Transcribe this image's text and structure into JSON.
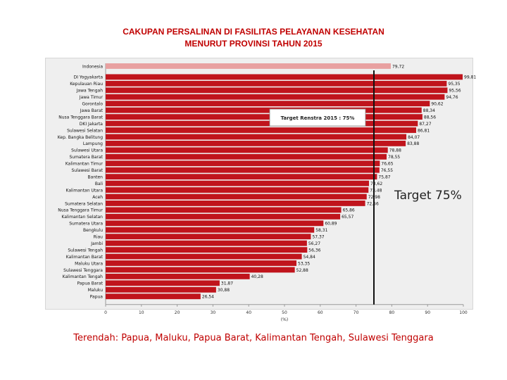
{
  "title_line1": "CAKUPAN PERSALINAN DI FASILITAS PELAYANAN KESEHATAN",
  "title_line2": "MENURUT PROVINSI TAHUN 2015",
  "target_label": "Target 75%",
  "footer_note": "Terendah: Papua, Maluku, Papua Barat, Kalimantan Tengah, Sulawesi Tenggara",
  "colors": {
    "bar": "#c0141c",
    "national_bar": "#e8a0a0",
    "target_line": "#111111",
    "title": "#c00000"
  },
  "chart_data": {
    "type": "bar",
    "orientation": "horizontal",
    "title": "CAKUPAN PERSALINAN DI FASILITAS PELAYANAN KESEHATAN MENURUT PROVINSI TAHUN 2015",
    "xlabel": "(%)",
    "ylabel": "",
    "xlim": [
      0,
      100
    ],
    "xticks": [
      0,
      10,
      20,
      30,
      40,
      50,
      60,
      70,
      80,
      90,
      100
    ],
    "grid": false,
    "target_value": 75,
    "target_text": "Target Renstra 2015 : 75%",
    "categories": [
      "Indonesia",
      "DI Yogyakarta",
      "Kepulauan Riau",
      "Jawa Tengah",
      "Jawa Timur",
      "Gorontalo",
      "Jawa Barat",
      "Nusa Tenggara Barat",
      "DKI Jakarta",
      "Sulawesi Selatan",
      "Kep. Bangka Belitung",
      "Lampung",
      "Sulawesi Utara",
      "Sumatera Barat",
      "Kalimantan Timur",
      "Sulawesi Barat",
      "Banten",
      "Bali",
      "Kalimantan Utara",
      "Aceh",
      "Sumatera Selatan",
      "Nusa Tenggara Timur",
      "Kalimantan Selatan",
      "Sumatera Utara",
      "Bengkulu",
      "Riau",
      "Jambi",
      "Sulawesi Tengah",
      "Kalimantan Barat",
      "Maluku Utara",
      "Sulawesi Tenggara",
      "Kalimantan Tengah",
      "Papua Barat",
      "Maluku",
      "Papua"
    ],
    "values": [
      79.72,
      99.81,
      95.35,
      95.56,
      94.76,
      90.62,
      88.34,
      88.56,
      87.27,
      86.81,
      84.07,
      83.88,
      78.88,
      78.55,
      76.65,
      76.55,
      75.87,
      73.62,
      73.48,
      72.98,
      72.56,
      65.86,
      65.57,
      60.89,
      58.31,
      57.37,
      56.27,
      56.36,
      54.84,
      53.35,
      52.88,
      40.28,
      31.87,
      30.88,
      26.54
    ],
    "value_labels": [
      "79,72",
      "99,81",
      "95,35",
      "95,56",
      "94,76",
      "90,62",
      "88,34",
      "88,56",
      "87,27",
      "86,81",
      "84,07",
      "83,88",
      "78,88",
      "78,55",
      "76,65",
      "76,55",
      "75,87",
      "73,62",
      "73,48",
      "72,98",
      "72,56",
      "65,86",
      "65,57",
      "60,89",
      "58,31",
      "57,37",
      "56,27",
      "56,36",
      "54,84",
      "53,35",
      "52,88",
      "40,28",
      "31,87",
      "30,88",
      "26,54"
    ]
  }
}
